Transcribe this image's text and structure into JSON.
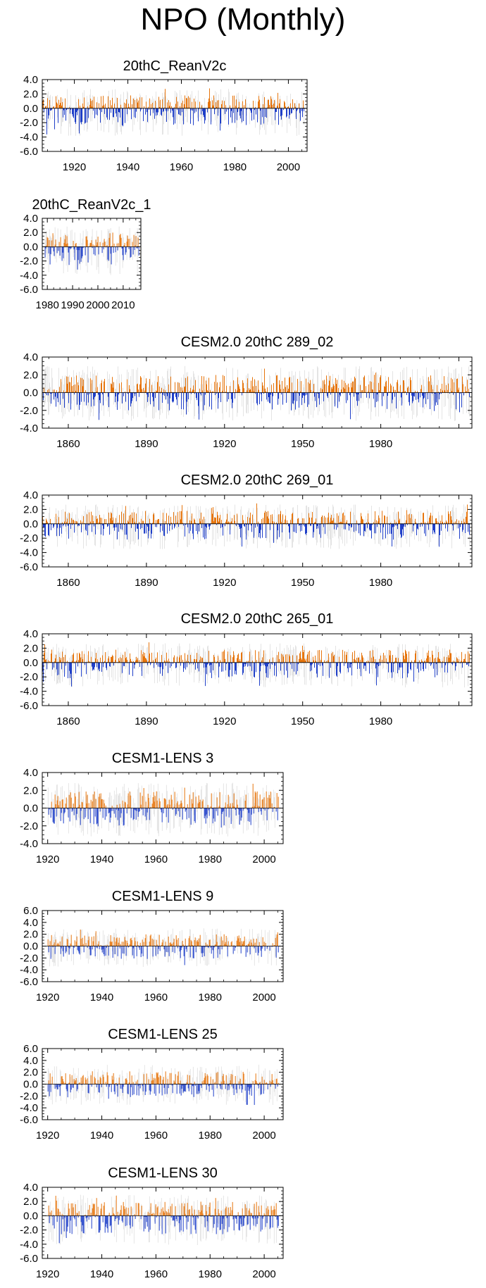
{
  "title": "NPO (Monthly)",
  "colors": {
    "positive": "#e6750d",
    "negative": "#1f3fc8",
    "envelope": "#b8b8b8",
    "axis": "#000000"
  },
  "chart_data": [
    {
      "type": "bar",
      "title": "20thC_ReanV2c",
      "xlim": [
        1908,
        2007
      ],
      "ylim": [
        -6,
        4
      ],
      "yticks": [
        "4.0",
        "2.0",
        "0.0",
        "-2.0",
        "-4.0",
        "-6.0"
      ],
      "ytick_values": [
        4,
        2,
        0,
        -2,
        -4,
        -6
      ],
      "xticks": [
        "1920",
        "1940",
        "1960",
        "1980",
        "2000"
      ],
      "xtick_values": [
        1920,
        1940,
        1960,
        1980,
        2000
      ],
      "x_start": 1908,
      "x_end": 2006,
      "pos_amp": 1.8,
      "neg_amp": 2.4,
      "seed": 11
    },
    {
      "type": "bar",
      "title": "20thC_ReanV2c_1",
      "xlim": [
        1978,
        2017
      ],
      "ylim": [
        -6,
        4
      ],
      "yticks": [
        "4.0",
        "2.0",
        "0.0",
        "-2.0",
        "-4.0",
        "-6.0"
      ],
      "ytick_values": [
        4,
        2,
        0,
        -2,
        -4,
        -6
      ],
      "xticks": [
        "1980",
        "1990",
        "2000",
        "2010"
      ],
      "xtick_values": [
        1980,
        1990,
        2000,
        2010
      ],
      "x_start": 1979,
      "x_end": 2016,
      "pos_amp": 1.9,
      "neg_amp": 2.6,
      "seed": 23
    },
    {
      "type": "bar",
      "title": "CESM2.0 20thC 289_02",
      "xlim": [
        1850,
        2015
      ],
      "ylim": [
        -4,
        4
      ],
      "yticks": [
        "4.0",
        "2.0",
        "0.0",
        "-2.0",
        "-4.0"
      ],
      "ytick_values": [
        4,
        2,
        0,
        -2,
        -4
      ],
      "xticks": [
        "1860",
        "1890",
        "1920",
        "1950",
        "1980"
      ],
      "xtick_values": [
        1860,
        1890,
        1920,
        1950,
        1980
      ],
      "x_start": 1850,
      "x_end": 2014,
      "pos_amp": 2.0,
      "neg_amp": 2.0,
      "seed": 37
    },
    {
      "type": "bar",
      "title": "CESM2.0 20thC 269_01",
      "xlim": [
        1850,
        2015
      ],
      "ylim": [
        -6,
        4
      ],
      "yticks": [
        "4.0",
        "2.0",
        "0.0",
        "-2.0",
        "-4.0",
        "-6.0"
      ],
      "ytick_values": [
        4,
        2,
        0,
        -2,
        -4,
        -6
      ],
      "xticks": [
        "1860",
        "1890",
        "1920",
        "1950",
        "1980"
      ],
      "xtick_values": [
        1860,
        1890,
        1920,
        1950,
        1980
      ],
      "x_start": 1850,
      "x_end": 2014,
      "pos_amp": 1.8,
      "neg_amp": 2.2,
      "seed": 41
    },
    {
      "type": "bar",
      "title": "CESM2.0 20thC 265_01",
      "xlim": [
        1850,
        2015
      ],
      "ylim": [
        -6,
        4
      ],
      "yticks": [
        "4.0",
        "2.0",
        "0.0",
        "-2.0",
        "-4.0",
        "-6.0"
      ],
      "ytick_values": [
        4,
        2,
        0,
        -2,
        -4,
        -6
      ],
      "xticks": [
        "1860",
        "1890",
        "1920",
        "1950",
        "1980"
      ],
      "xtick_values": [
        1860,
        1890,
        1920,
        1950,
        1980
      ],
      "x_start": 1850,
      "x_end": 2014,
      "pos_amp": 1.8,
      "neg_amp": 2.2,
      "seed": 53
    },
    {
      "type": "bar",
      "title": "CESM1-LENS 3",
      "xlim": [
        1918,
        2007
      ],
      "ylim": [
        -4,
        4
      ],
      "yticks": [
        "4.0",
        "2.0",
        "0.0",
        "-2.0",
        "-4.0"
      ],
      "ytick_values": [
        4,
        2,
        0,
        -2,
        -4
      ],
      "xticks": [
        "1920",
        "1940",
        "1960",
        "1980",
        "2000"
      ],
      "xtick_values": [
        1920,
        1940,
        1960,
        1980,
        2000
      ],
      "x_start": 1920,
      "x_end": 2005,
      "pos_amp": 1.9,
      "neg_amp": 2.0,
      "seed": 61
    },
    {
      "type": "bar",
      "title": "CESM1-LENS 9",
      "xlim": [
        1918,
        2007
      ],
      "ylim": [
        -6,
        6
      ],
      "yticks": [
        "6.0",
        "4.0",
        "2.0",
        "0.0",
        "-2.0",
        "-4.0",
        "-6.0"
      ],
      "ytick_values": [
        6,
        4,
        2,
        0,
        -2,
        -4,
        -6
      ],
      "xticks": [
        "1920",
        "1940",
        "1960",
        "1980",
        "2000"
      ],
      "xtick_values": [
        1920,
        1940,
        1960,
        1980,
        2000
      ],
      "x_start": 1920,
      "x_end": 2005,
      "pos_amp": 2.0,
      "neg_amp": 2.2,
      "seed": 71
    },
    {
      "type": "bar",
      "title": "CESM1-LENS 25",
      "xlim": [
        1918,
        2007
      ],
      "ylim": [
        -6,
        6
      ],
      "yticks": [
        "6.0",
        "4.0",
        "2.0",
        "0.0",
        "-2.0",
        "-4.0",
        "-6.0"
      ],
      "ytick_values": [
        6,
        4,
        2,
        0,
        -2,
        -4,
        -6
      ],
      "xticks": [
        "1920",
        "1940",
        "1960",
        "1980",
        "2000"
      ],
      "xtick_values": [
        1920,
        1940,
        1960,
        1980,
        2000
      ],
      "x_start": 1920,
      "x_end": 2005,
      "pos_amp": 2.2,
      "neg_amp": 2.2,
      "seed": 83
    },
    {
      "type": "bar",
      "title": "CESM1-LENS 30",
      "xlim": [
        1918,
        2007
      ],
      "ylim": [
        -6,
        4
      ],
      "yticks": [
        "4.0",
        "2.0",
        "0.0",
        "-2.0",
        "-4.0",
        "-6.0"
      ],
      "ytick_values": [
        4,
        2,
        0,
        -2,
        -4,
        -6
      ],
      "xticks": [
        "1920",
        "1940",
        "1960",
        "1980",
        "2000"
      ],
      "xtick_values": [
        1920,
        1940,
        1960,
        1980,
        2000
      ],
      "x_start": 1920,
      "x_end": 2005,
      "pos_amp": 2.0,
      "neg_amp": 2.6,
      "seed": 97
    }
  ]
}
